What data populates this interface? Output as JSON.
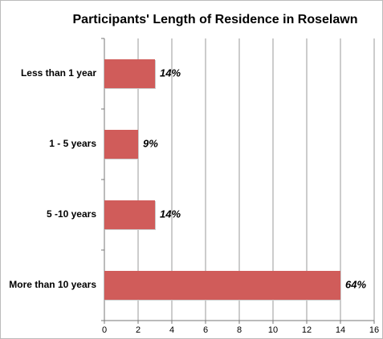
{
  "chart_data": {
    "type": "hbar",
    "title": "Participants' Length of Residence in Roselawn",
    "categories": [
      "Less than 1 year",
      "1 - 5 years",
      "5 -10 years",
      "More than 10 years"
    ],
    "values": [
      3,
      2,
      3,
      14
    ],
    "value_labels": [
      "14%",
      "9%",
      "14%",
      "64%"
    ],
    "color": "#d05c5a",
    "xlim": [
      0,
      16
    ],
    "xticks": [
      0,
      2,
      4,
      6,
      8,
      10,
      12,
      14,
      16
    ],
    "grid": true
  }
}
